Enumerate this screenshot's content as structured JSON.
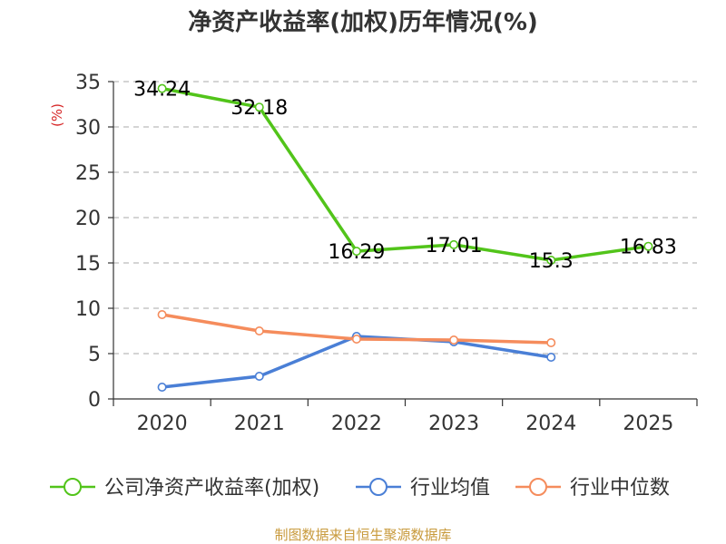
{
  "chart_data": {
    "type": "line",
    "title": "净资产收益率(加权)历年情况(%)",
    "xlabel": "",
    "ylabel": "(%)",
    "categories": [
      "2020",
      "2021",
      "2022",
      "2023",
      "2024",
      "2025"
    ],
    "ylim": [
      0,
      35
    ],
    "yticks": [
      0,
      5,
      10,
      15,
      20,
      25,
      30,
      35
    ],
    "grid": true,
    "legend_position": "bottom",
    "series": [
      {
        "name": "公司净资产收益率(加权)",
        "color": "#52c41a",
        "values": [
          34.24,
          32.18,
          16.29,
          17.01,
          15.3,
          16.83
        ],
        "data_labels": [
          "34.24",
          "32.18",
          "16.29",
          "17.01",
          "15.3",
          "16.83"
        ]
      },
      {
        "name": "行业均值",
        "color": "#4a7fd6",
        "values": [
          1.3,
          2.5,
          6.9,
          6.3,
          4.6,
          null
        ],
        "data_labels": []
      },
      {
        "name": "行业中位数",
        "color": "#f58c5c",
        "values": [
          9.3,
          7.5,
          6.6,
          6.5,
          6.2,
          null
        ],
        "data_labels": []
      }
    ],
    "source": "制图数据来自恒生聚源数据库"
  }
}
